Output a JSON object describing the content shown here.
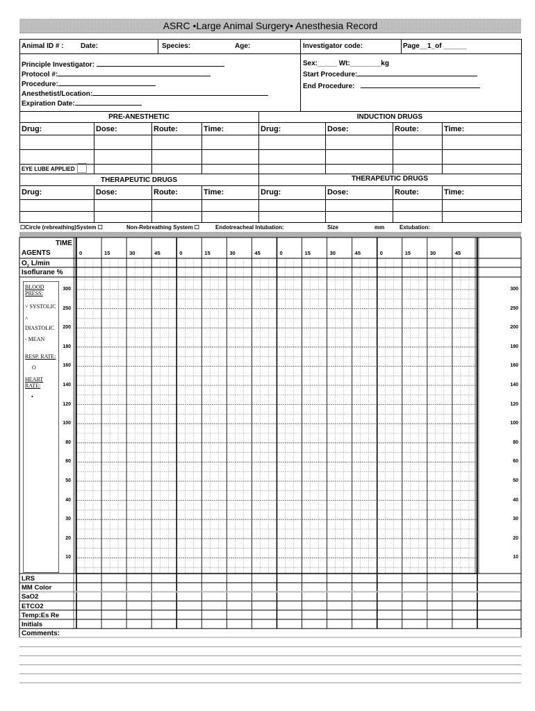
{
  "title": "ASRC •Large Animal Surgery• Anesthesia Record",
  "row1": {
    "animal_id": "Animal ID # :",
    "date": "Date:",
    "species": "Species:",
    "age": "Age:",
    "investigator_code": "Investigator code:",
    "page": "Page__1_of ______"
  },
  "info": {
    "pi": "Principle Investigator:",
    "protocol": "Protocol #:",
    "procedure": "Procedure:",
    "anesthetist": "Anesthetist/Location:",
    "expiration": "Expiration Date:",
    "sex": "Sex:_____ Wt:________kg",
    "start": "Start Procedure:",
    "end": "End Procedure:"
  },
  "drug_sections": {
    "pre": "PRE-ANESTHETIC",
    "induction": "INDUCTION DRUGS",
    "therapeutic_left": "THERAPEUTIC DRUGS",
    "therapeutic_right": "THERAPEUTIC DRUGS"
  },
  "drug_cols": [
    "Drug:",
    "Dose:",
    "Route:",
    "Time:",
    "Drug:",
    "Dose:",
    "Route:",
    "Time:"
  ],
  "eye_lube": "EYE LUBE APPLIED",
  "airway": {
    "circle": "Circle (rebreathing)System",
    "non_rebreathing": "Non-Rebreathing System",
    "intubation": "Endotreacheal Intubation:",
    "size": "Size",
    "mm": "mm",
    "extubation": "Extubation:"
  },
  "time_header": {
    "time": "TIME",
    "agents": "AGENTS",
    "o2": "O",
    "o2_sub": "2",
    "o2_unit": "L/min",
    "iso": "Isoflurane  %"
  },
  "time_ticks": [
    "0",
    "15",
    "30",
    "45",
    "0",
    "15",
    "30",
    "45",
    "0",
    "15",
    "30",
    "45",
    "0",
    "15",
    "30",
    "45"
  ],
  "legend": {
    "bp": "BLOOD PRESS:",
    "systolic": "˅ SYSTOLIC",
    "caret": "˄",
    "diastolic": "DIASTOLIC",
    "mean": "-  MEAN",
    "resp": "RESP. RATE:",
    "resp_sym": "O",
    "hr": "HEART RATE:",
    "hr_sym": "•"
  },
  "y_ticks": [
    "300",
    "250",
    "200",
    "180",
    "160",
    "140",
    "120",
    "100",
    "80",
    "60",
    "50",
    "40",
    "30",
    "20",
    "10"
  ],
  "bottom_rows": [
    "LRS",
    "MM Color",
    "SaO2",
    "ETCO2",
    "Temp:Es Re",
    "Initials"
  ],
  "comments": "Comments:"
}
